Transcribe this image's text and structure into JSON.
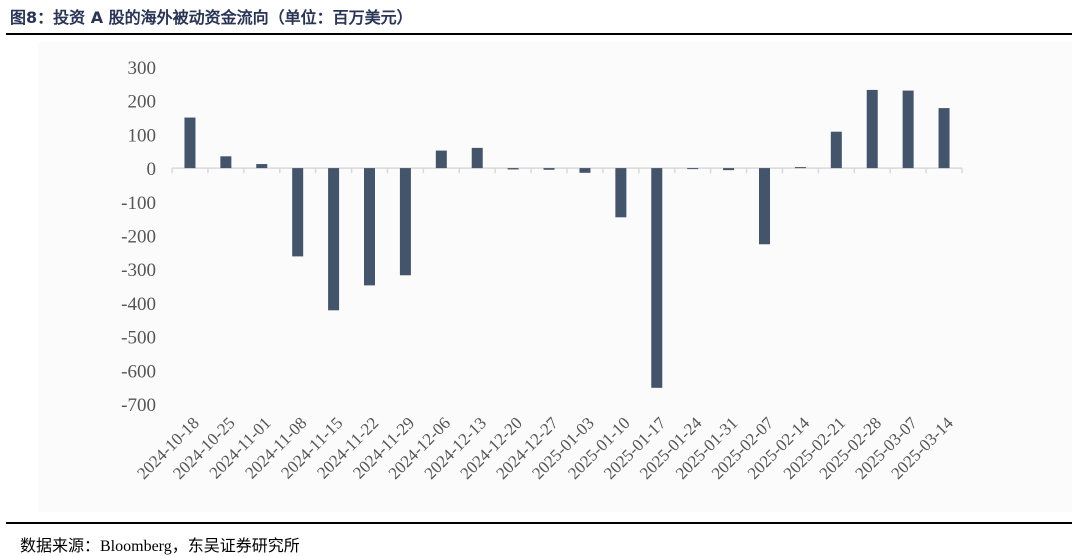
{
  "page": {
    "title": "图8：投资 A 股的海外被动资金流向（单位：百万美元）",
    "source": "数据来源：Bloomberg，东吴证券研究所"
  },
  "chart_data": {
    "type": "bar",
    "title": "图8：投资 A 股的海外被动资金流向（单位：百万美元）",
    "xlabel": "",
    "ylabel": "",
    "categories": [
      "2024-10-18",
      "2024-10-25",
      "2024-11-01",
      "2024-11-08",
      "2024-11-15",
      "2024-11-22",
      "2024-11-29",
      "2024-12-06",
      "2024-12-13",
      "2024-12-20",
      "2024-12-27",
      "2025-01-03",
      "2025-01-10",
      "2025-01-17",
      "2025-01-24",
      "2025-01-31",
      "2025-02-07",
      "2025-02-14",
      "2025-02-21",
      "2025-02-28",
      "2025-03-07",
      "2025-03-14"
    ],
    "values": [
      150,
      35,
      12,
      -262,
      -422,
      -348,
      -318,
      52,
      60,
      -4,
      -5,
      -14,
      -146,
      -652,
      -3,
      -6,
      -226,
      3,
      108,
      232,
      230,
      178
    ],
    "ylim": [
      -700,
      300
    ],
    "yticks": [
      300,
      200,
      100,
      0,
      -100,
      -200,
      -300,
      -400,
      -500,
      -600,
      -700
    ],
    "grid": false,
    "legend": "none",
    "bar_color": "#44546a",
    "axis_color": "#d9d9d9",
    "tick_label_color": "#555555"
  }
}
